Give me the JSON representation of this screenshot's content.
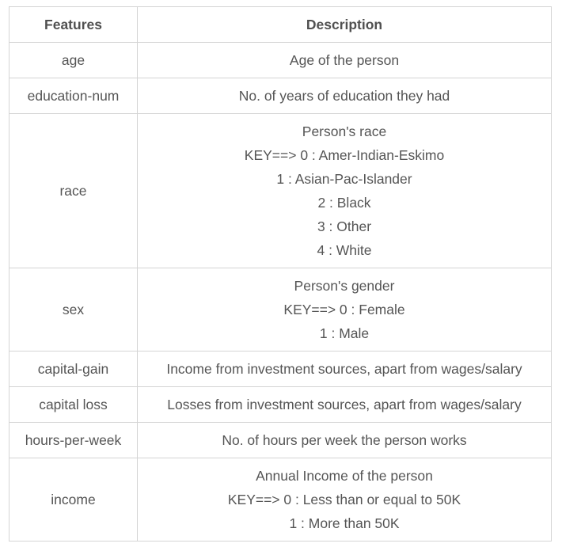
{
  "table": {
    "headers": [
      "Features",
      "Description"
    ],
    "rows": [
      {
        "feature": "age",
        "lines": [
          "Age of the person"
        ]
      },
      {
        "feature": "education-num",
        "lines": [
          "No. of years of education they had"
        ]
      },
      {
        "feature": "race",
        "lines": [
          "Person's race",
          "KEY==> 0 : Amer-Indian-Eskimo",
          "1 : Asian-Pac-Islander",
          "2 : Black",
          "3 : Other",
          "4 : White"
        ]
      },
      {
        "feature": "sex",
        "lines": [
          "Person's gender",
          "KEY==> 0 : Female",
          "1 : Male"
        ]
      },
      {
        "feature": "capital-gain",
        "lines": [
          "Income from investment sources, apart from wages/salary"
        ]
      },
      {
        "feature": "capital loss",
        "lines": [
          "Losses from investment sources, apart from wages/salary"
        ]
      },
      {
        "feature": "hours-per-week",
        "lines": [
          "No. of hours per week the person works"
        ]
      },
      {
        "feature": "income",
        "lines": [
          "Annual Income of the person",
          "KEY==> 0 : Less than or equal to 50K",
          "1 : More than 50K"
        ]
      }
    ]
  }
}
